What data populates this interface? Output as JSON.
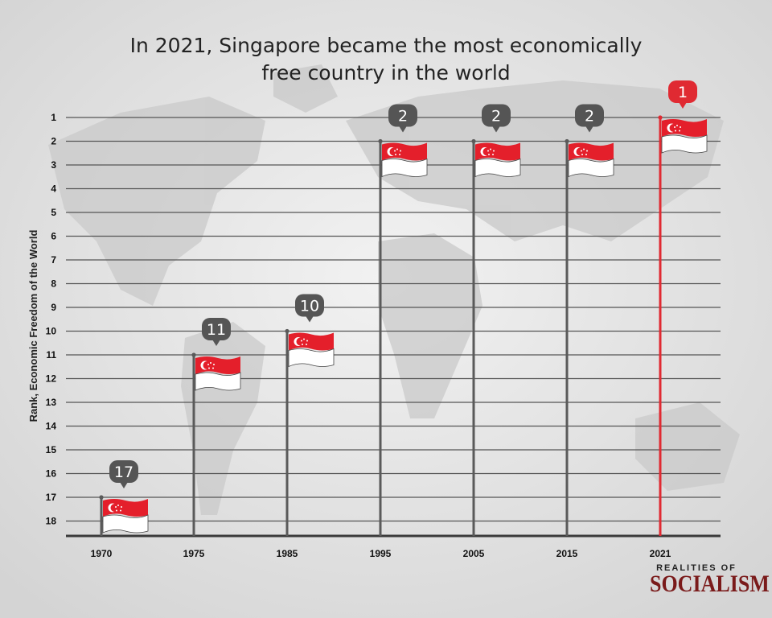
{
  "chart_data": {
    "type": "bar",
    "title": "In 2021, Singapore became the most economically free country in the world",
    "title_lines": [
      "In 2021, Singapore became the most economically",
      "free country in the world"
    ],
    "ylabel": "Rank, Economic Freedom of the World",
    "xlabel": "",
    "y_ticks": [
      "1",
      "2",
      "3",
      "4",
      "5",
      "6",
      "7",
      "8",
      "9",
      "10",
      "11",
      "12",
      "13",
      "14",
      "15",
      "16",
      "17",
      "18"
    ],
    "ylim": [
      1,
      18
    ],
    "y_inverted": true,
    "categories": [
      "1970",
      "1975",
      "1985",
      "1995",
      "2005",
      "2015",
      "2021"
    ],
    "values": [
      17,
      11,
      10,
      2,
      2,
      2,
      1
    ],
    "data_labels": [
      "17",
      "11",
      "10",
      "2",
      "2",
      "2",
      "1"
    ],
    "highlight_category": "2021",
    "grid": true,
    "marker": "singapore-flag"
  },
  "colors": {
    "pole": "#5a5a5a",
    "pole_highlight": "#e02a32",
    "bubble": "#555555",
    "bubble_highlight": "#e02a32",
    "flag_red": "#e41f2b",
    "gridline": "#555555"
  },
  "branding": {
    "line1": "REALITIES OF",
    "line2": "SOCIALISM"
  }
}
